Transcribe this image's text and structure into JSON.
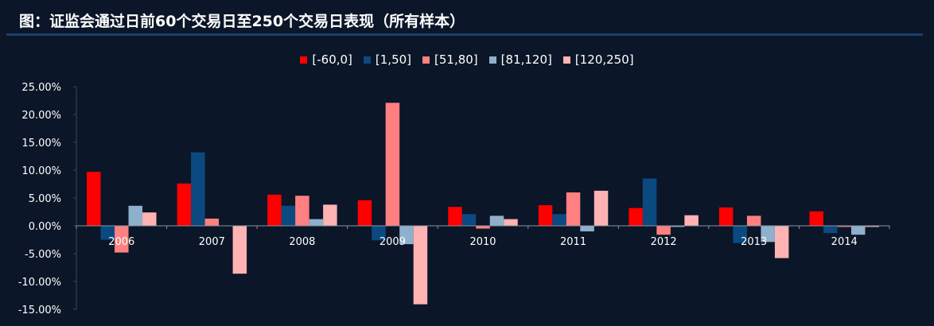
{
  "title": "图：证监会通过日前60个交易日至250个交易日表现（所有样本）",
  "chart_data": {
    "type": "bar",
    "categories": [
      "2006",
      "2007",
      "2008",
      "2009",
      "2010",
      "2011",
      "2012",
      "2013",
      "2014"
    ],
    "series": [
      {
        "name": "[-60,0]",
        "color": "#ff0000",
        "values": [
          9.7,
          7.6,
          5.6,
          4.6,
          3.4,
          3.7,
          3.2,
          3.3,
          2.6
        ]
      },
      {
        "name": "[1,50]",
        "color": "#0b4a80",
        "values": [
          -2.5,
          13.2,
          3.6,
          -2.6,
          2.1,
          2.1,
          8.5,
          -3.1,
          -1.3
        ]
      },
      {
        "name": "[51,80]",
        "color": "#ff8080",
        "values": [
          -4.8,
          1.3,
          5.4,
          22.1,
          -0.5,
          6.0,
          -1.6,
          1.8,
          -0.2
        ]
      },
      {
        "name": "[81,120]",
        "color": "#8fb0cc",
        "values": [
          3.6,
          0.0,
          1.2,
          -3.3,
          1.8,
          -1.0,
          -0.2,
          -2.9,
          -1.6
        ]
      },
      {
        "name": "[120,250]",
        "color": "#ffb3b3",
        "values": [
          2.4,
          -8.6,
          3.8,
          -14.1,
          1.2,
          6.3,
          1.9,
          -5.8,
          -0.2
        ]
      }
    ],
    "yticks": [
      "25.00%",
      "20.00%",
      "15.00%",
      "10.00%",
      "5.00%",
      "0.00%",
      "-5.00%",
      "-10.00%",
      "-15.00%"
    ],
    "ylim": [
      -15,
      25
    ],
    "legend_position": "top-center"
  }
}
